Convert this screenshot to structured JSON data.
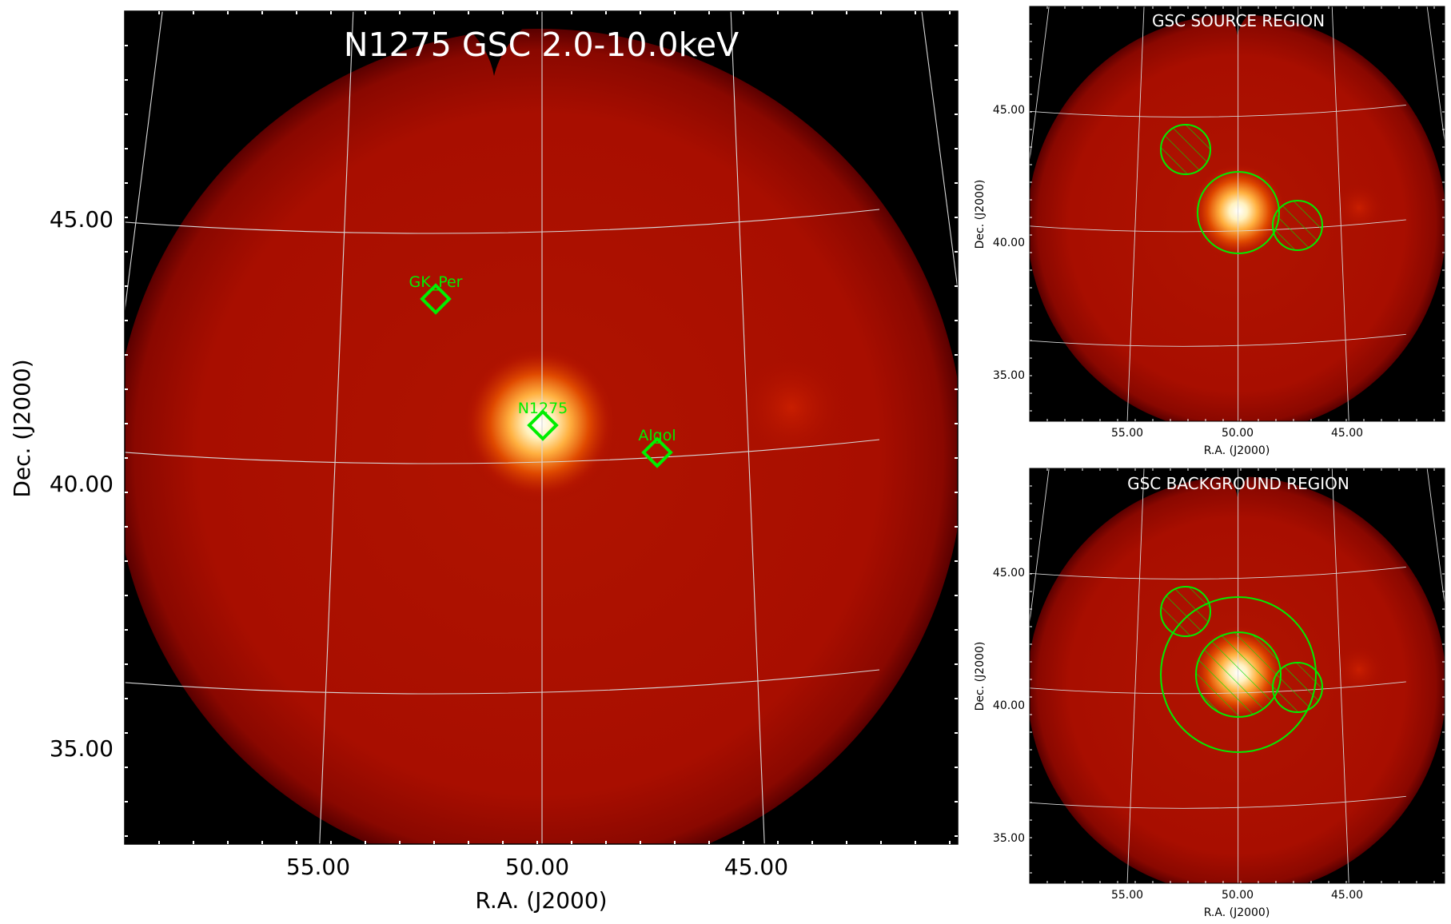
{
  "main_panel": {
    "title": "N1275 GSC 2.0-10.0keV",
    "xlabel": "R.A. (J2000)",
    "ylabel": "Dec. (J2000)",
    "x_ticks": [
      "55.00",
      "50.00",
      "45.00"
    ],
    "y_ticks": [
      "45.00",
      "40.00",
      "35.00"
    ],
    "sources": [
      {
        "name": "GK_Per",
        "ra": 52.8,
        "dec": 43.9
      },
      {
        "name": "N1275",
        "ra": 49.95,
        "dec": 41.51
      },
      {
        "name": "Algol",
        "ra": 47.04,
        "dec": 40.96
      }
    ]
  },
  "source_panel": {
    "title": "GSC SOURCE REGION",
    "xlabel": "R.A. (J2000)",
    "ylabel": "Dec. (J2000)",
    "x_ticks": [
      "55.00",
      "50.00",
      "45.00"
    ],
    "y_ticks": [
      "45.00",
      "40.00",
      "35.00"
    ]
  },
  "background_panel": {
    "title": "GSC BACKGROUND REGION",
    "xlabel": "R.A. (J2000)",
    "ylabel": "Dec. (J2000)",
    "x_ticks": [
      "55.00",
      "50.00",
      "45.00"
    ],
    "y_ticks": [
      "45.00",
      "40.00",
      "35.00"
    ]
  },
  "colors": {
    "region_green": "#00ee00",
    "map_dark_red": "#8a0000",
    "map_red": "#b41400",
    "grid": "#d8d8d8",
    "background": "#000000"
  }
}
